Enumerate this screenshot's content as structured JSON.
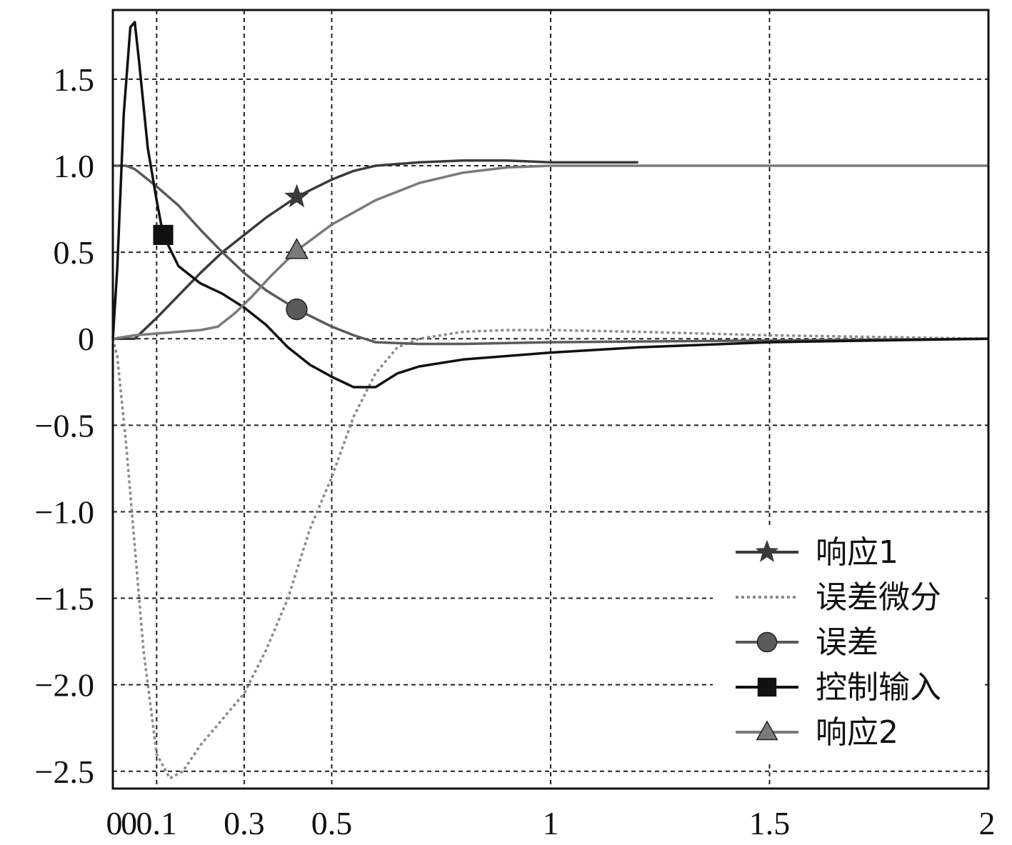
{
  "chart_data": {
    "type": "line",
    "title": "",
    "xlabel": "",
    "ylabel": "",
    "xlim": [
      0,
      2
    ],
    "ylim": [
      -2.6,
      1.9
    ],
    "grid": true,
    "legend_placement": "bottom-right",
    "x_ticks": [
      {
        "value": 0,
        "label": "0"
      },
      {
        "value": 0.1,
        "label": "0.1"
      },
      {
        "value": 0.3,
        "label": "0.3"
      },
      {
        "value": 0.5,
        "label": "0.5"
      },
      {
        "value": 1,
        "label": "1"
      },
      {
        "value": 1.5,
        "label": "1.5"
      },
      {
        "value": 2,
        "label": "2"
      }
    ],
    "x_prefix_label": {
      "value": 0.05,
      "label": "0"
    },
    "y_ticks": [
      {
        "value": 1.5,
        "label": "1.5"
      },
      {
        "value": 1.0,
        "label": "1.0"
      },
      {
        "value": 0.5,
        "label": "0.5"
      },
      {
        "value": 0,
        "label": "0"
      },
      {
        "value": -0.5,
        "label": "−0.5"
      },
      {
        "value": -1.0,
        "label": "−1.0"
      },
      {
        "value": -1.5,
        "label": "−1.5"
      },
      {
        "value": -2.0,
        "label": "−2.0"
      },
      {
        "value": -2.5,
        "label": "−2.5"
      }
    ],
    "series": [
      {
        "name": "响应1",
        "color": "#3a3a3a",
        "dash": "solid",
        "marker": "star",
        "marker_at": [
          0.42,
          0.82
        ],
        "x": [
          0,
          0.05,
          0.1,
          0.15,
          0.2,
          0.25,
          0.3,
          0.35,
          0.42,
          0.5,
          0.55,
          0.6,
          0.7,
          0.8,
          0.9,
          1.0,
          1.2
        ],
        "y": [
          0,
          0.0,
          0.12,
          0.25,
          0.38,
          0.5,
          0.6,
          0.7,
          0.82,
          0.92,
          0.97,
          1.0,
          1.02,
          1.03,
          1.03,
          1.02,
          1.02
        ]
      },
      {
        "name": "误差微分",
        "color": "#8a8a8a",
        "dash": "dotted",
        "marker": "none",
        "x": [
          0,
          0.01,
          0.03,
          0.05,
          0.07,
          0.1,
          0.13,
          0.16,
          0.2,
          0.25,
          0.3,
          0.35,
          0.4,
          0.45,
          0.5,
          0.55,
          0.6,
          0.65,
          0.7,
          0.8,
          0.9,
          1.0,
          1.2,
          1.5,
          2.0
        ],
        "y": [
          0,
          -0.1,
          -0.6,
          -1.2,
          -1.8,
          -2.4,
          -2.54,
          -2.5,
          -2.35,
          -2.2,
          -2.05,
          -1.8,
          -1.5,
          -1.1,
          -0.8,
          -0.45,
          -0.2,
          -0.05,
          0.0,
          0.04,
          0.05,
          0.05,
          0.04,
          0.02,
          0.0
        ]
      },
      {
        "name": "误差",
        "color": "#5a5a5a",
        "dash": "solid",
        "marker": "circle",
        "marker_at": [
          0.42,
          0.17
        ],
        "x": [
          0,
          0.03,
          0.05,
          0.1,
          0.15,
          0.2,
          0.25,
          0.3,
          0.35,
          0.42,
          0.5,
          0.55,
          0.6,
          0.7,
          0.8,
          1.0,
          1.5,
          2.0
        ],
        "y": [
          1.0,
          1.0,
          0.98,
          0.88,
          0.77,
          0.63,
          0.5,
          0.38,
          0.28,
          0.17,
          0.07,
          0.02,
          -0.02,
          -0.03,
          -0.03,
          -0.02,
          -0.01,
          0.0
        ]
      },
      {
        "name": "控制输入",
        "color": "#111111",
        "dash": "solid",
        "marker": "square",
        "marker_at": [
          0.115,
          0.6
        ],
        "x": [
          0,
          0.01,
          0.025,
          0.04,
          0.05,
          0.06,
          0.08,
          0.1,
          0.115,
          0.15,
          0.2,
          0.25,
          0.3,
          0.35,
          0.4,
          0.45,
          0.5,
          0.55,
          0.6,
          0.65,
          0.7,
          0.8,
          1.0,
          1.2,
          1.5,
          2.0
        ],
        "y": [
          0,
          0.4,
          1.3,
          1.8,
          1.83,
          1.6,
          1.1,
          0.8,
          0.6,
          0.42,
          0.32,
          0.26,
          0.18,
          0.08,
          -0.05,
          -0.15,
          -0.22,
          -0.28,
          -0.28,
          -0.2,
          -0.16,
          -0.12,
          -0.08,
          -0.05,
          -0.02,
          0.0
        ]
      },
      {
        "name": "响应2",
        "color": "#7a7a7a",
        "dash": "solid",
        "marker": "triangle",
        "marker_at": [
          0.42,
          0.51
        ],
        "x": [
          0,
          0.05,
          0.1,
          0.15,
          0.2,
          0.24,
          0.28,
          0.32,
          0.36,
          0.42,
          0.5,
          0.6,
          0.7,
          0.8,
          0.9,
          1.0,
          1.5,
          2.0
        ],
        "y": [
          0,
          0.02,
          0.03,
          0.04,
          0.05,
          0.07,
          0.15,
          0.25,
          0.36,
          0.51,
          0.66,
          0.8,
          0.9,
          0.96,
          0.99,
          1.0,
          1.0,
          1.0
        ]
      }
    ]
  }
}
